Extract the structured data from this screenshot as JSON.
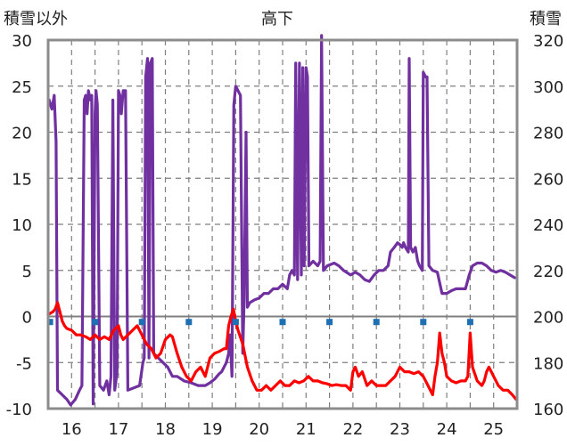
{
  "chart_data": {
    "type": "line",
    "title": "高下",
    "left_axis_label": "積雪以外",
    "right_axis_label": "積雪",
    "x_range": [
      15.5,
      25.5
    ],
    "x_ticks": [
      16,
      17,
      18,
      19,
      20,
      21,
      22,
      23,
      24,
      25
    ],
    "x_tick_labels": [
      "16",
      "17",
      "18",
      "19",
      "20",
      "21",
      "22",
      "23",
      "24",
      "25"
    ],
    "y_left_range": [
      -10,
      30
    ],
    "y_left_ticks": [
      -10,
      -5,
      0,
      5,
      10,
      15,
      20,
      25,
      30
    ],
    "y_left_tick_labels": [
      "-10",
      "-5",
      "0",
      "5",
      "10",
      "15",
      "20",
      "25",
      "30"
    ],
    "y_right_range": [
      160,
      320
    ],
    "y_right_ticks": [
      160,
      180,
      200,
      220,
      240,
      260,
      280,
      300,
      320
    ],
    "y_right_tick_labels": [
      "160",
      "180",
      "200",
      "220",
      "240",
      "260",
      "280",
      "300",
      "320"
    ],
    "grid": true,
    "series": [
      {
        "color": "#7030a0",
        "axis": "left",
        "points": [
          [
            15.52,
            23.5
          ],
          [
            15.58,
            22.5
          ],
          [
            15.63,
            24.0
          ],
          [
            15.67,
            19.0
          ],
          [
            15.7,
            -8.0
          ],
          [
            15.8,
            -8.5
          ],
          [
            15.9,
            -9.0
          ],
          [
            15.98,
            -9.6
          ],
          [
            16.08,
            -9.0
          ],
          [
            16.17,
            -8.0
          ],
          [
            16.22,
            -7.5
          ],
          [
            16.27,
            23.5
          ],
          [
            16.3,
            24.0
          ],
          [
            16.33,
            22.0
          ],
          [
            16.36,
            24.5
          ],
          [
            16.4,
            23.5
          ],
          [
            16.43,
            24.0
          ],
          [
            16.46,
            -9.5
          ],
          [
            16.5,
            22.0
          ],
          [
            16.52,
            24.5
          ],
          [
            16.55,
            23.0
          ],
          [
            16.6,
            -7.5
          ],
          [
            16.68,
            -8.0
          ],
          [
            16.75,
            -7.0
          ],
          [
            16.8,
            -8.5
          ],
          [
            16.84,
            -6.5
          ],
          [
            16.88,
            23.5
          ],
          [
            16.92,
            -8.0
          ],
          [
            16.97,
            -6.0
          ],
          [
            17.0,
            24.5
          ],
          [
            17.03,
            24.0
          ],
          [
            17.06,
            22.0
          ],
          [
            17.1,
            24.5
          ],
          [
            17.15,
            24.5
          ],
          [
            17.2,
            -8.0
          ],
          [
            17.3,
            -7.8
          ],
          [
            17.45,
            -7.5
          ],
          [
            17.52,
            -5.0
          ],
          [
            17.55,
            -4.5
          ],
          [
            17.58,
            26.0
          ],
          [
            17.62,
            28.0
          ],
          [
            17.65,
            -4.5
          ],
          [
            17.68,
            27.5
          ],
          [
            17.72,
            28.0
          ],
          [
            17.75,
            -4.0
          ],
          [
            17.85,
            -4.5
          ],
          [
            17.95,
            -5.0
          ],
          [
            18.05,
            -5.5
          ],
          [
            18.15,
            -6.5
          ],
          [
            18.25,
            -6.5
          ],
          [
            18.4,
            -7.0
          ],
          [
            18.55,
            -7.2
          ],
          [
            18.7,
            -7.5
          ],
          [
            18.85,
            -7.5
          ],
          [
            18.95,
            -7.2
          ],
          [
            19.05,
            -6.8
          ],
          [
            19.15,
            -6.2
          ],
          [
            19.2,
            -6.0
          ],
          [
            19.25,
            -5.5
          ],
          [
            19.3,
            -5.0
          ],
          [
            19.35,
            -4.0
          ],
          [
            19.38,
            -2.0
          ],
          [
            19.42,
            -6.5
          ],
          [
            19.46,
            23.0
          ],
          [
            19.5,
            25.0
          ],
          [
            19.55,
            24.5
          ],
          [
            19.6,
            24.0
          ],
          [
            19.65,
            -4.0
          ],
          [
            19.68,
            2.0
          ],
          [
            19.72,
            20.0
          ],
          [
            19.75,
            1.0
          ],
          [
            19.8,
            1.5
          ],
          [
            19.9,
            1.8
          ],
          [
            20.0,
            2.0
          ],
          [
            20.1,
            2.5
          ],
          [
            20.2,
            2.5
          ],
          [
            20.3,
            3.0
          ],
          [
            20.4,
            3.0
          ],
          [
            20.5,
            3.5
          ],
          [
            20.6,
            3.0
          ],
          [
            20.65,
            4.5
          ],
          [
            20.7,
            5.0
          ],
          [
            20.75,
            4.5
          ],
          [
            20.78,
            27.5
          ],
          [
            20.82,
            4.0
          ],
          [
            20.86,
            27.5
          ],
          [
            20.9,
            4.5
          ],
          [
            20.93,
            27.0
          ],
          [
            20.96,
            5.5
          ],
          [
            21.0,
            27.0
          ],
          [
            21.03,
            26.0
          ],
          [
            21.06,
            5.5
          ],
          [
            21.15,
            6.0
          ],
          [
            21.25,
            5.5
          ],
          [
            21.3,
            6.0
          ],
          [
            21.33,
            30.5
          ],
          [
            21.37,
            5.0
          ],
          [
            21.45,
            5.5
          ],
          [
            21.6,
            5.8
          ],
          [
            21.7,
            5.5
          ],
          [
            21.8,
            5.0
          ],
          [
            21.95,
            4.5
          ],
          [
            22.05,
            4.8
          ],
          [
            22.15,
            4.5
          ],
          [
            22.25,
            4.0
          ],
          [
            22.35,
            3.8
          ],
          [
            22.45,
            4.5
          ],
          [
            22.55,
            5.0
          ],
          [
            22.65,
            5.0
          ],
          [
            22.75,
            5.5
          ],
          [
            22.8,
            7.0
          ],
          [
            22.88,
            7.5
          ],
          [
            22.95,
            8.0
          ],
          [
            23.0,
            7.8
          ],
          [
            23.05,
            7.5
          ],
          [
            23.08,
            8.0
          ],
          [
            23.12,
            7.5
          ],
          [
            23.18,
            7.0
          ],
          [
            23.2,
            28.0
          ],
          [
            23.23,
            7.5
          ],
          [
            23.28,
            7.0
          ],
          [
            23.33,
            7.5
          ],
          [
            23.38,
            6.0
          ],
          [
            23.42,
            5.5
          ],
          [
            23.48,
            5.0
          ],
          [
            23.5,
            26.5
          ],
          [
            23.55,
            26.0
          ],
          [
            23.58,
            26.0
          ],
          [
            23.62,
            5.5
          ],
          [
            23.7,
            5.0
          ],
          [
            23.8,
            4.8
          ],
          [
            23.9,
            2.5
          ],
          [
            24.0,
            2.5
          ],
          [
            24.1,
            2.8
          ],
          [
            24.2,
            3.0
          ],
          [
            24.3,
            3.0
          ],
          [
            24.4,
            3.0
          ],
          [
            24.48,
            4.5
          ],
          [
            24.55,
            5.5
          ],
          [
            24.65,
            5.8
          ],
          [
            24.75,
            5.8
          ],
          [
            24.85,
            5.5
          ],
          [
            24.95,
            5.0
          ],
          [
            25.05,
            4.8
          ],
          [
            25.15,
            5.0
          ],
          [
            25.25,
            4.8
          ],
          [
            25.35,
            4.5
          ],
          [
            25.45,
            4.2
          ]
        ]
      },
      {
        "color": "#ff0000",
        "axis": "left",
        "points": [
          [
            15.5,
            0.2
          ],
          [
            15.6,
            0.5
          ],
          [
            15.65,
            0.8
          ],
          [
            15.7,
            1.5
          ],
          [
            15.75,
            0.5
          ],
          [
            15.8,
            -0.5
          ],
          [
            15.85,
            -1.0
          ],
          [
            15.9,
            -1.3
          ],
          [
            16.0,
            -1.5
          ],
          [
            16.1,
            -2.0
          ],
          [
            16.2,
            -2.0
          ],
          [
            16.3,
            -2.2
          ],
          [
            16.4,
            -2.5
          ],
          [
            16.5,
            -2.0
          ],
          [
            16.6,
            -2.5
          ],
          [
            16.7,
            -2.2
          ],
          [
            16.8,
            -2.5
          ],
          [
            16.9,
            -1.5
          ],
          [
            17.0,
            -1.0
          ],
          [
            17.05,
            -2.0
          ],
          [
            17.1,
            -2.5
          ],
          [
            17.2,
            -2.0
          ],
          [
            17.3,
            -1.5
          ],
          [
            17.4,
            -1.0
          ],
          [
            17.5,
            -2.0
          ],
          [
            17.6,
            -3.0
          ],
          [
            17.7,
            -3.5
          ],
          [
            17.8,
            -4.5
          ],
          [
            17.9,
            -4.0
          ],
          [
            18.0,
            -2.5
          ],
          [
            18.1,
            -2.0
          ],
          [
            18.15,
            -2.2
          ],
          [
            18.25,
            -4.0
          ],
          [
            18.35,
            -5.5
          ],
          [
            18.45,
            -6.5
          ],
          [
            18.55,
            -7.0
          ],
          [
            18.65,
            -6.0
          ],
          [
            18.75,
            -5.5
          ],
          [
            18.85,
            -6.5
          ],
          [
            18.95,
            -4.5
          ],
          [
            19.05,
            -4.0
          ],
          [
            19.15,
            -3.8
          ],
          [
            19.25,
            -3.5
          ],
          [
            19.3,
            -3.5
          ],
          [
            19.35,
            -1.0
          ],
          [
            19.4,
            0.0
          ],
          [
            19.45,
            0.8
          ],
          [
            19.5,
            -0.5
          ],
          [
            19.55,
            -1.5
          ],
          [
            19.65,
            -3.0
          ],
          [
            19.75,
            -5.5
          ],
          [
            19.85,
            -7.0
          ],
          [
            19.95,
            -8.0
          ],
          [
            20.05,
            -8.0
          ],
          [
            20.15,
            -7.5
          ],
          [
            20.25,
            -8.0
          ],
          [
            20.35,
            -7.5
          ],
          [
            20.45,
            -7.0
          ],
          [
            20.55,
            -7.5
          ],
          [
            20.65,
            -7.5
          ],
          [
            20.75,
            -7.0
          ],
          [
            20.85,
            -7.2
          ],
          [
            20.95,
            -7.0
          ],
          [
            21.05,
            -6.5
          ],
          [
            21.15,
            -7.0
          ],
          [
            21.25,
            -7.0
          ],
          [
            21.35,
            -7.2
          ],
          [
            21.45,
            -7.3
          ],
          [
            21.55,
            -7.5
          ],
          [
            21.65,
            -7.4
          ],
          [
            21.75,
            -7.5
          ],
          [
            21.85,
            -7.5
          ],
          [
            21.95,
            -8.0
          ],
          [
            22.0,
            -6.0
          ],
          [
            22.05,
            -5.5
          ],
          [
            22.12,
            -6.5
          ],
          [
            22.2,
            -6.0
          ],
          [
            22.3,
            -7.5
          ],
          [
            22.4,
            -7.0
          ],
          [
            22.5,
            -7.5
          ],
          [
            22.6,
            -7.5
          ],
          [
            22.7,
            -7.5
          ],
          [
            22.8,
            -7.0
          ],
          [
            22.9,
            -6.5
          ],
          [
            23.0,
            -5.5
          ],
          [
            23.1,
            -6.0
          ],
          [
            23.2,
            -6.0
          ],
          [
            23.3,
            -6.2
          ],
          [
            23.4,
            -6.0
          ],
          [
            23.5,
            -6.5
          ],
          [
            23.6,
            -7.5
          ],
          [
            23.7,
            -8.5
          ],
          [
            23.75,
            -6.5
          ],
          [
            23.8,
            -5.0
          ],
          [
            23.85,
            -1.8
          ],
          [
            23.9,
            -4.0
          ],
          [
            23.95,
            -5.0
          ],
          [
            24.0,
            -6.5
          ],
          [
            24.1,
            -7.0
          ],
          [
            24.2,
            -7.2
          ],
          [
            24.3,
            -7.0
          ],
          [
            24.4,
            -7.0
          ],
          [
            24.45,
            -6.5
          ],
          [
            24.5,
            -1.8
          ],
          [
            24.55,
            -5.5
          ],
          [
            24.65,
            -7.0
          ],
          [
            24.75,
            -7.5
          ],
          [
            24.8,
            -7.0
          ],
          [
            24.85,
            -6.0
          ],
          [
            24.9,
            -5.5
          ],
          [
            24.95,
            -6.0
          ],
          [
            25.0,
            -6.5
          ],
          [
            25.1,
            -7.5
          ],
          [
            25.2,
            -8.0
          ],
          [
            25.3,
            -8.0
          ],
          [
            25.4,
            -8.5
          ],
          [
            25.48,
            -9.0
          ]
        ]
      },
      {
        "color": "#1f6fb5",
        "axis": "left",
        "style": "square-markers",
        "points": [
          [
            15.54,
            -0.6
          ],
          [
            16.5,
            -0.6
          ],
          [
            17.5,
            -0.6
          ],
          [
            18.5,
            -0.6
          ],
          [
            19.5,
            -0.6
          ],
          [
            20.5,
            -0.6
          ],
          [
            21.5,
            -0.6
          ],
          [
            22.5,
            -0.6
          ],
          [
            23.5,
            -0.6
          ],
          [
            24.5,
            -0.6
          ]
        ]
      }
    ]
  }
}
